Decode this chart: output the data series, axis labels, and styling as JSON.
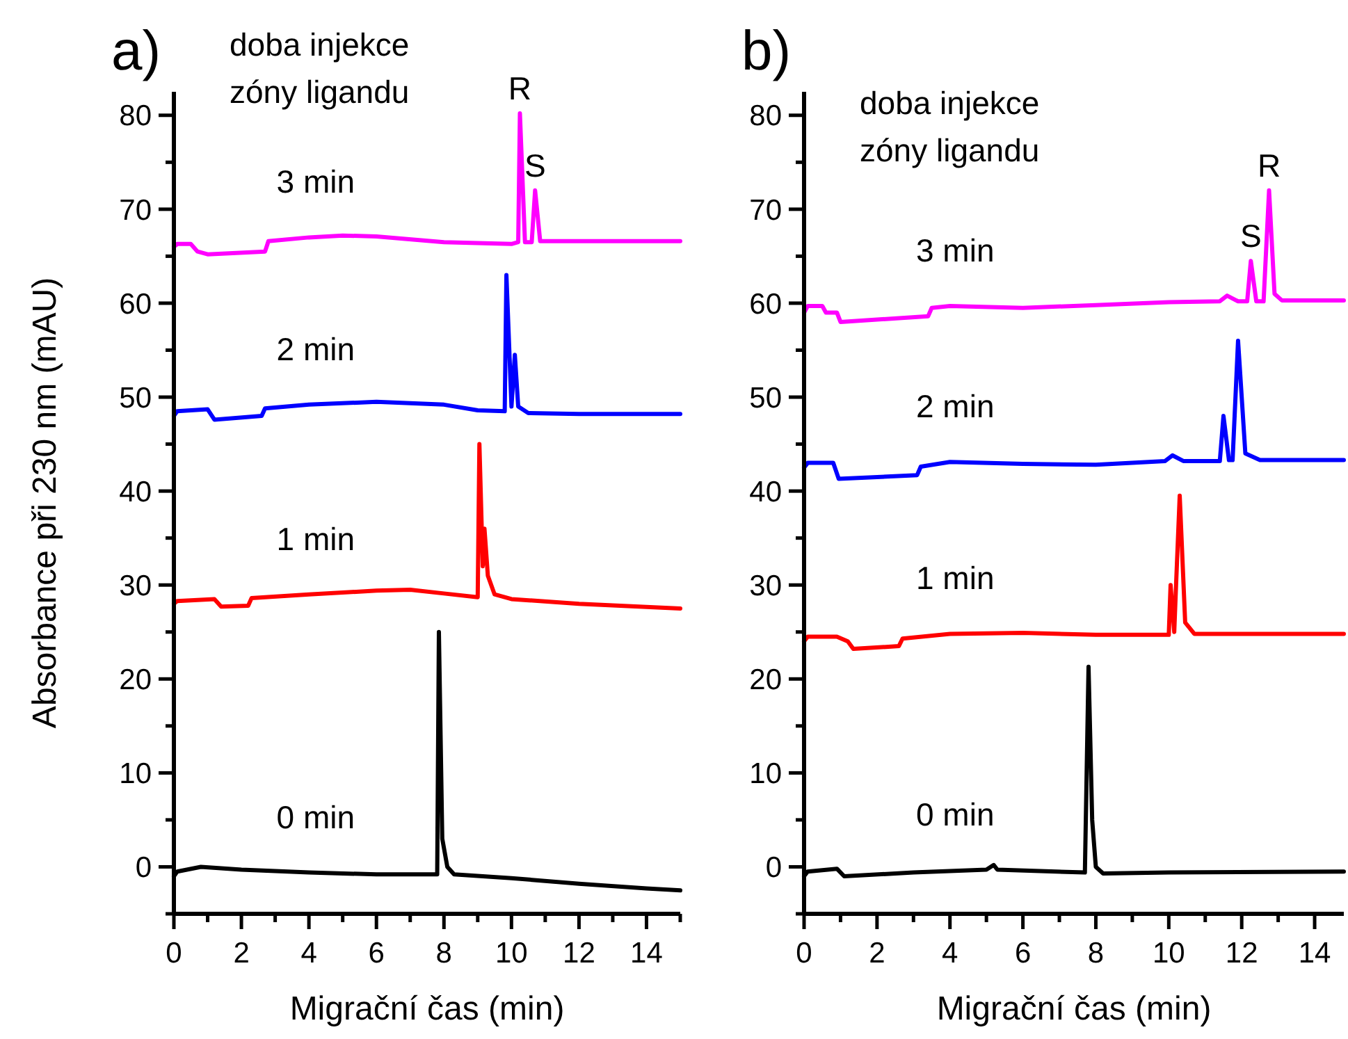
{
  "chart_data": [
    {
      "type": "line",
      "title": "a)",
      "xlabel": "Migrační čas (min)",
      "ylabel": "Absorbance při 230 nm (mAU)",
      "xlim": [
        0,
        15
      ],
      "ylim": [
        -5,
        82.5
      ],
      "xticks": [
        0,
        {
          "value": 1,
          "label": null
        },
        2,
        {
          "value": 3,
          "label": null
        },
        4,
        {
          "value": 5,
          "label": null
        },
        6,
        {
          "value": 7,
          "label": null
        },
        8,
        {
          "value": 9,
          "label": null
        },
        10,
        {
          "value": 11,
          "label": null
        },
        12,
        {
          "value": 13,
          "label": null
        },
        14,
        {
          "value": 15,
          "label": null
        }
      ],
      "yticks": [
        {
          "value": -5,
          "label": null
        },
        0,
        {
          "value": 5,
          "label": null
        },
        10,
        {
          "value": 15,
          "label": null
        },
        20,
        {
          "value": 25,
          "label": null
        },
        30,
        {
          "value": 35,
          "label": null
        },
        40,
        {
          "value": 45,
          "label": null
        },
        50,
        {
          "value": 55,
          "label": null
        },
        60,
        {
          "value": 65,
          "label": null
        },
        70,
        {
          "value": 75,
          "label": null
        },
        80
      ],
      "annotations": [
        "doba injekce\nzóny ligandu",
        {
          "text": "R",
          "x": 10.25,
          "y": 80.2
        },
        {
          "text": "S",
          "x": 10.7,
          "y": 72
        }
      ],
      "series": [
        {
          "name": "0 min",
          "color": "#000000",
          "x": [
            0,
            0.1,
            0.8,
            2,
            4,
            6,
            7.8,
            7.85,
            7.95,
            8.1,
            8.3,
            10,
            12,
            14,
            15
          ],
          "values": [
            -1,
            -0.5,
            0,
            -0.3,
            -0.6,
            -0.8,
            -0.8,
            25,
            3,
            0,
            -0.8,
            -1.2,
            -1.8,
            -2.3,
            -2.5
          ]
        },
        {
          "name": "1 min",
          "color": "#ff0000",
          "x": [
            0,
            0.1,
            1.2,
            1.4,
            2.2,
            2.3,
            4,
            6,
            7,
            8,
            9,
            9.05,
            9.15,
            9.2,
            9.3,
            9.5,
            10,
            12,
            15
          ],
          "values": [
            28,
            28.3,
            28.5,
            27.7,
            27.8,
            28.6,
            29,
            29.4,
            29.5,
            29.1,
            28.7,
            45,
            32,
            36,
            31,
            29,
            28.5,
            28,
            27.5
          ]
        },
        {
          "name": "2 min",
          "color": "#0000ff",
          "x": [
            0,
            0.1,
            1,
            1.2,
            2.6,
            2.7,
            4,
            6,
            8,
            9,
            9.8,
            9.85,
            10,
            10.1,
            10.2,
            10.5,
            12,
            15
          ],
          "values": [
            48,
            48.5,
            48.7,
            47.6,
            48,
            48.8,
            49.2,
            49.5,
            49.2,
            48.6,
            48.5,
            63,
            49,
            54.5,
            49,
            48.3,
            48.2,
            48.2
          ]
        },
        {
          "name": "3 min",
          "color": "#ff00ff",
          "x": [
            0,
            0.1,
            0.5,
            0.7,
            1,
            2.7,
            2.8,
            4,
            5,
            6,
            8,
            10,
            10.2,
            10.25,
            10.4,
            10.6,
            10.7,
            10.85,
            12,
            15
          ],
          "values": [
            66,
            66.3,
            66.3,
            65.5,
            65.2,
            65.5,
            66.6,
            67,
            67.2,
            67.1,
            66.5,
            66.3,
            66.5,
            80.2,
            66.5,
            66.5,
            72,
            66.6,
            66.6,
            66.6
          ]
        }
      ]
    },
    {
      "type": "line",
      "title": "b)",
      "xlabel": "Migrační čas (min)",
      "xlim": [
        0,
        14.8
      ],
      "ylim": [
        -5,
        82.5
      ],
      "xticks": [
        0,
        {
          "value": 1,
          "label": null
        },
        2,
        {
          "value": 3,
          "label": null
        },
        4,
        {
          "value": 5,
          "label": null
        },
        6,
        {
          "value": 7,
          "label": null
        },
        8,
        {
          "value": 9,
          "label": null
        },
        10,
        {
          "value": 11,
          "label": null
        },
        12,
        {
          "value": 13,
          "label": null
        },
        14
      ],
      "yticks": [
        {
          "value": -5,
          "label": null
        },
        0,
        {
          "value": 5,
          "label": null
        },
        10,
        {
          "value": 15,
          "label": null
        },
        20,
        {
          "value": 25,
          "label": null
        },
        30,
        {
          "value": 35,
          "label": null
        },
        40,
        {
          "value": 45,
          "label": null
        },
        50,
        {
          "value": 55,
          "label": null
        },
        60,
        {
          "value": 65,
          "label": null
        },
        70,
        {
          "value": 75,
          "label": null
        },
        80
      ],
      "annotations": [
        "doba injekce\nzóny ligandu",
        {
          "text": "S",
          "x": 12.25,
          "y": 64.5
        },
        {
          "text": "R",
          "x": 12.75,
          "y": 72
        }
      ],
      "series": [
        {
          "name": "0 min",
          "color": "#000000",
          "x": [
            0,
            0.1,
            0.9,
            1.1,
            3,
            5,
            5.2,
            5.3,
            7.7,
            7.8,
            7.9,
            8,
            8.2,
            10,
            14.8
          ],
          "values": [
            -1,
            -0.5,
            -0.2,
            -1,
            -0.6,
            -0.3,
            0.2,
            -0.3,
            -0.6,
            21.3,
            5,
            0,
            -0.7,
            -0.6,
            -0.5
          ]
        },
        {
          "name": "1 min",
          "color": "#ff0000",
          "x": [
            0,
            0.1,
            0.9,
            1.2,
            1.35,
            2.6,
            2.7,
            4,
            6,
            8,
            10,
            10.05,
            10.15,
            10.2,
            10.3,
            10.45,
            10.7,
            14.8
          ],
          "values": [
            24,
            24.5,
            24.5,
            24,
            23.2,
            23.5,
            24.3,
            24.8,
            24.9,
            24.7,
            24.7,
            30,
            25,
            30,
            39.5,
            26,
            24.8,
            24.8
          ]
        },
        {
          "name": "2 min",
          "color": "#0000ff",
          "x": [
            0,
            0.1,
            0.8,
            0.95,
            3.1,
            3.2,
            4,
            6,
            8,
            9.9,
            10.1,
            10.4,
            11.4,
            11.5,
            11.65,
            11.75,
            11.9,
            12.1,
            12.5,
            14.8
          ],
          "values": [
            42.5,
            43,
            43,
            41.3,
            41.7,
            42.6,
            43.1,
            42.9,
            42.8,
            43.2,
            43.8,
            43.2,
            43.2,
            48,
            43.3,
            43.3,
            56,
            44,
            43.3,
            43.3
          ]
        },
        {
          "name": "3 min",
          "color": "#ff00ff",
          "x": [
            0,
            0.1,
            0.5,
            0.6,
            0.9,
            1,
            3.4,
            3.5,
            4,
            6,
            8,
            10,
            11.4,
            11.6,
            11.9,
            12.15,
            12.25,
            12.4,
            12.6,
            12.75,
            12.9,
            13.1,
            14.8
          ],
          "values": [
            59,
            59.7,
            59.7,
            59,
            59,
            58,
            58.6,
            59.5,
            59.7,
            59.5,
            59.8,
            60.1,
            60.2,
            60.8,
            60.2,
            60.2,
            64.5,
            60.2,
            60.2,
            72,
            61,
            60.3,
            60.3
          ]
        }
      ]
    }
  ]
}
